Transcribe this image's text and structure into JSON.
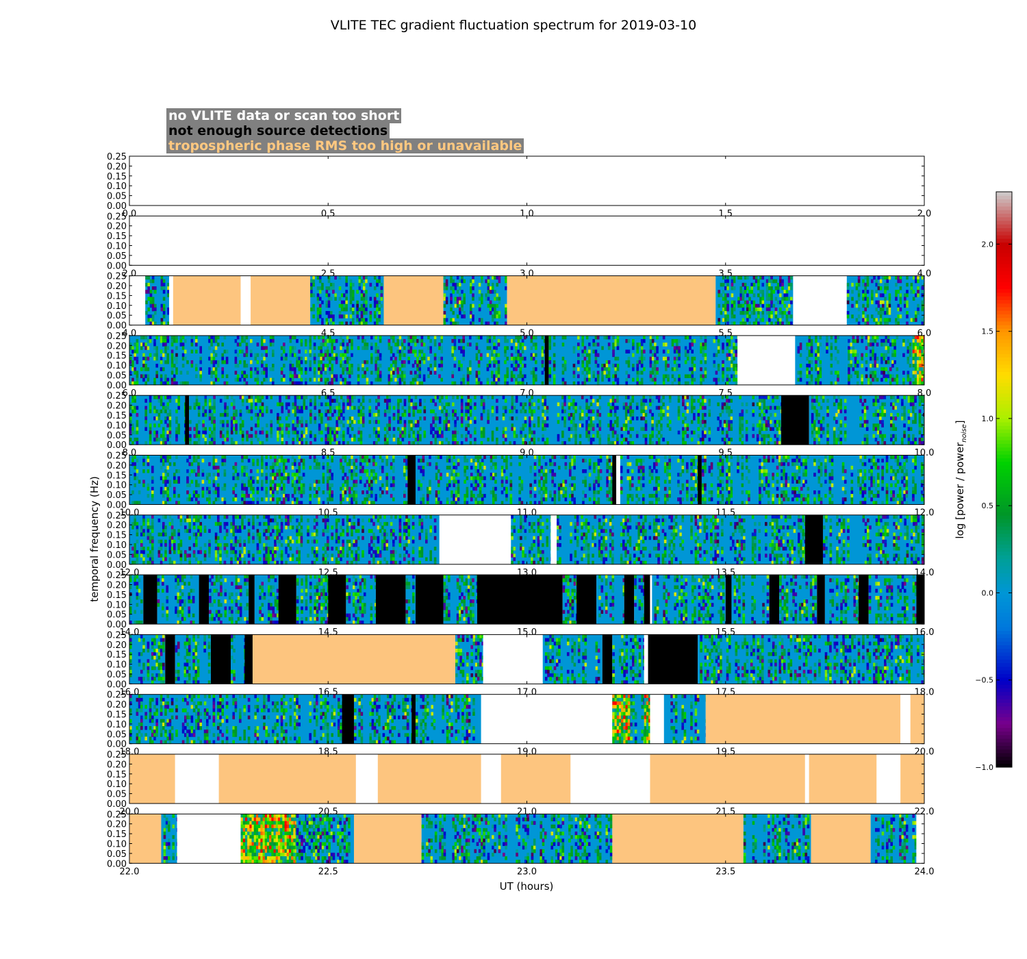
{
  "chart_data": {
    "type": "heatmap",
    "title": "VLITE TEC gradient fluctuation spectrum for 2019-03-10",
    "xlabel": "UT (hours)",
    "ylabel": "temporal frequency (Hz)",
    "ylim": [
      0,
      0.25
    ],
    "yticks": [
      "0.00",
      "0.05",
      "0.10",
      "0.15",
      "0.20",
      "0.25"
    ],
    "colorbar": {
      "label": "log [power / power",
      "label_sub": "noise",
      "label_end": "]",
      "range": [
        -1.0,
        2.3
      ],
      "ticks": [
        {
          "value": -1.0,
          "label": "−1.0"
        },
        {
          "value": -0.5,
          "label": "−0.5"
        },
        {
          "value": 0.0,
          "label": "0.0"
        },
        {
          "value": 0.5,
          "label": "0.5"
        },
        {
          "value": 1.0,
          "label": "1.0"
        },
        {
          "value": 1.5,
          "label": "1.5"
        },
        {
          "value": 2.0,
          "label": "2.0"
        }
      ]
    },
    "legend": [
      {
        "text": "no VLITE data or scan too short",
        "color": "#ffffff"
      },
      {
        "text": "not enough source detections",
        "color": "#000000"
      },
      {
        "text": "tropospheric phase RMS too high or unavailable",
        "color": "#ffc880"
      }
    ],
    "flag_colors": {
      "nodata": "#ffffff",
      "nodet": "#000000",
      "tropo": "#fdc57f",
      "base": "#0096d6"
    },
    "panels": [
      {
        "start": 0,
        "end": 2,
        "xticks": [
          "0.0",
          "0.5",
          "1.0",
          "1.5",
          "2.0"
        ],
        "segments": []
      },
      {
        "start": 2,
        "end": 4,
        "xticks": [
          "2.0",
          "2.5",
          "3.0",
          "3.5",
          "4.0"
        ],
        "segments": []
      },
      {
        "start": 4,
        "end": 6,
        "xticks": [
          "4.0",
          "4.5",
          "5.0",
          "5.5",
          "6.0"
        ],
        "segments": [
          [
            "nodata",
            4.0,
            4.04
          ],
          [
            "data",
            4.04,
            4.1
          ],
          [
            "nodata",
            4.1,
            4.11
          ],
          [
            "tropo",
            4.11,
            4.28
          ],
          [
            "nodata",
            4.28,
            4.305
          ],
          [
            "tropo",
            4.305,
            4.455
          ],
          [
            "data",
            4.455,
            4.64
          ],
          [
            "tropo",
            4.64,
            4.79
          ],
          [
            "data",
            4.79,
            4.95
          ],
          [
            "tropo",
            4.95,
            5.475
          ],
          [
            "data",
            5.475,
            5.67
          ],
          [
            "nodata",
            5.67,
            5.805
          ],
          [
            "data",
            5.805,
            6.0
          ]
        ]
      },
      {
        "start": 6,
        "end": 8,
        "xticks": [
          "6.0",
          "6.5",
          "7.0",
          "7.5",
          "8.0"
        ],
        "segments": [
          [
            "data",
            6.0,
            7.045
          ],
          [
            "nodet",
            7.045,
            7.055
          ],
          [
            "data",
            7.055,
            7.53
          ],
          [
            "nodata",
            7.53,
            7.675
          ],
          [
            "data",
            7.675,
            7.97
          ],
          [
            "hot",
            7.97,
            8.0
          ]
        ]
      },
      {
        "start": 8,
        "end": 10,
        "xticks": [
          "8.0",
          "8.5",
          "9.0",
          "9.5",
          "10.0"
        ],
        "segments": [
          [
            "data",
            8.0,
            8.14
          ],
          [
            "nodet",
            8.14,
            8.15
          ],
          [
            "data",
            8.15,
            9.64
          ],
          [
            "nodet",
            9.64,
            9.71
          ],
          [
            "data",
            9.71,
            10.0
          ]
        ]
      },
      {
        "start": 10,
        "end": 12,
        "xticks": [
          "10.0",
          "10.5",
          "11.0",
          "11.5",
          "12.0"
        ],
        "segments": [
          [
            "data",
            10.0,
            10.7
          ],
          [
            "nodet",
            10.7,
            10.72
          ],
          [
            "data",
            10.72,
            11.215
          ],
          [
            "nodet",
            11.215,
            11.225
          ],
          [
            "nodata",
            11.225,
            11.235
          ],
          [
            "data",
            11.235,
            11.43
          ],
          [
            "nodet",
            11.43,
            11.44
          ],
          [
            "data",
            11.44,
            12.0
          ]
        ]
      },
      {
        "start": 12,
        "end": 14,
        "xticks": [
          "12.0",
          "12.5",
          "13.0",
          "13.5",
          "14.0"
        ],
        "segments": [
          [
            "data",
            12.0,
            12.78
          ],
          [
            "nodata",
            12.78,
            12.96
          ],
          [
            "data",
            12.96,
            13.06
          ],
          [
            "nodata",
            13.06,
            13.075
          ],
          [
            "data",
            13.075,
            13.7
          ],
          [
            "nodet",
            13.7,
            13.745
          ],
          [
            "data",
            13.745,
            14.0
          ]
        ]
      },
      {
        "start": 14,
        "end": 16,
        "xticks": [
          "14.0",
          "14.5",
          "15.0",
          "15.5",
          "16.0"
        ],
        "segments": [
          [
            "data",
            14.0,
            14.035
          ],
          [
            "nodet",
            14.035,
            14.07
          ],
          [
            "data",
            14.07,
            14.175
          ],
          [
            "nodet",
            14.175,
            14.2
          ],
          [
            "data",
            14.2,
            14.3
          ],
          [
            "nodet",
            14.3,
            14.315
          ],
          [
            "data",
            14.315,
            14.375
          ],
          [
            "nodet",
            14.375,
            14.42
          ],
          [
            "data",
            14.42,
            14.5
          ],
          [
            "nodet",
            14.5,
            14.545
          ],
          [
            "data",
            14.545,
            14.62
          ],
          [
            "nodet",
            14.62,
            14.695
          ],
          [
            "data",
            14.695,
            14.72
          ],
          [
            "nodet",
            14.72,
            14.79
          ],
          [
            "data",
            14.79,
            14.875
          ],
          [
            "nodet",
            14.875,
            15.09
          ],
          [
            "data",
            15.09,
            15.125
          ],
          [
            "nodet",
            15.125,
            15.175
          ],
          [
            "data",
            15.175,
            15.245
          ],
          [
            "nodet",
            15.245,
            15.27
          ],
          [
            "data",
            15.27,
            15.295
          ],
          [
            "nodet",
            15.295,
            15.31
          ],
          [
            "nodata",
            15.31,
            15.315
          ],
          [
            "data",
            15.315,
            15.5
          ],
          [
            "nodet",
            15.5,
            15.515
          ],
          [
            "data",
            15.515,
            15.61
          ],
          [
            "nodet",
            15.61,
            15.635
          ],
          [
            "data",
            15.635,
            15.73
          ],
          [
            "nodet",
            15.73,
            15.75
          ],
          [
            "data",
            15.75,
            15.835
          ],
          [
            "nodet",
            15.835,
            15.86
          ],
          [
            "data",
            15.86,
            15.98
          ],
          [
            "nodet",
            15.98,
            16.0
          ]
        ]
      },
      {
        "start": 16,
        "end": 18,
        "xticks": [
          "16.0",
          "16.5",
          "17.0",
          "17.5",
          "18.0"
        ],
        "segments": [
          [
            "data",
            16.0,
            16.09
          ],
          [
            "nodet",
            16.09,
            16.115
          ],
          [
            "data",
            16.115,
            16.205
          ],
          [
            "nodet",
            16.205,
            16.255
          ],
          [
            "data",
            16.255,
            16.29
          ],
          [
            "nodet",
            16.29,
            16.31
          ],
          [
            "tropo",
            16.31,
            16.82
          ],
          [
            "data",
            16.82,
            16.89
          ],
          [
            "nodata",
            16.89,
            17.04
          ],
          [
            "data",
            17.04,
            17.19
          ],
          [
            "nodet",
            17.19,
            17.215
          ],
          [
            "data",
            17.215,
            17.295
          ],
          [
            "nodata",
            17.295,
            17.305
          ],
          [
            "nodet",
            17.305,
            17.43
          ],
          [
            "data",
            17.43,
            18.0
          ]
        ]
      },
      {
        "start": 18,
        "end": 20,
        "xticks": [
          "18.0",
          "18.5",
          "19.0",
          "19.5",
          "20.0"
        ],
        "segments": [
          [
            "data",
            18.0,
            18.535
          ],
          [
            "nodet",
            18.535,
            18.565
          ],
          [
            "data",
            18.565,
            18.71
          ],
          [
            "nodet",
            18.71,
            18.72
          ],
          [
            "data",
            18.72,
            18.885
          ],
          [
            "nodata",
            18.885,
            19.215
          ],
          [
            "hot",
            19.215,
            19.26
          ],
          [
            "data",
            19.26,
            19.295
          ],
          [
            "hot",
            19.295,
            19.31
          ],
          [
            "nodata",
            19.31,
            19.345
          ],
          [
            "data",
            19.345,
            19.45
          ],
          [
            "tropo",
            19.45,
            19.94
          ],
          [
            "nodata",
            19.94,
            19.965
          ],
          [
            "tropo",
            19.965,
            20.0
          ]
        ]
      },
      {
        "start": 20,
        "end": 22,
        "xticks": [
          "20.0",
          "20.5",
          "21.0",
          "21.5",
          "22.0"
        ],
        "segments": [
          [
            "tropo",
            20.0,
            20.115
          ],
          [
            "nodata",
            20.115,
            20.225
          ],
          [
            "tropo",
            20.225,
            20.57
          ],
          [
            "nodata",
            20.57,
            20.625
          ],
          [
            "tropo",
            20.625,
            20.885
          ],
          [
            "nodata",
            20.885,
            20.935
          ],
          [
            "tropo",
            20.935,
            21.11
          ],
          [
            "nodata",
            21.11,
            21.31
          ],
          [
            "tropo",
            21.31,
            21.7
          ],
          [
            "nodata",
            21.7,
            21.71
          ],
          [
            "tropo",
            21.71,
            21.88
          ],
          [
            "nodata",
            21.88,
            21.94
          ],
          [
            "tropo",
            21.94,
            22.0
          ]
        ]
      },
      {
        "start": 22,
        "end": 24,
        "xticks": [
          "22.0",
          "22.5",
          "23.0",
          "23.5",
          "24.0"
        ],
        "segments": [
          [
            "tropo",
            22.0,
            22.08
          ],
          [
            "data",
            22.08,
            22.12
          ],
          [
            "nodata",
            22.12,
            22.28
          ],
          [
            "hot",
            22.28,
            22.42
          ],
          [
            "data",
            22.42,
            22.445
          ],
          [
            "data",
            22.445,
            22.565
          ],
          [
            "tropo",
            22.565,
            22.735
          ],
          [
            "data",
            22.735,
            23.215
          ],
          [
            "tropo",
            23.215,
            23.545
          ],
          [
            "data",
            23.545,
            23.715
          ],
          [
            "tropo",
            23.715,
            23.865
          ],
          [
            "data",
            23.865,
            23.98
          ],
          [
            "nodata",
            23.98,
            24.0
          ]
        ]
      }
    ]
  }
}
